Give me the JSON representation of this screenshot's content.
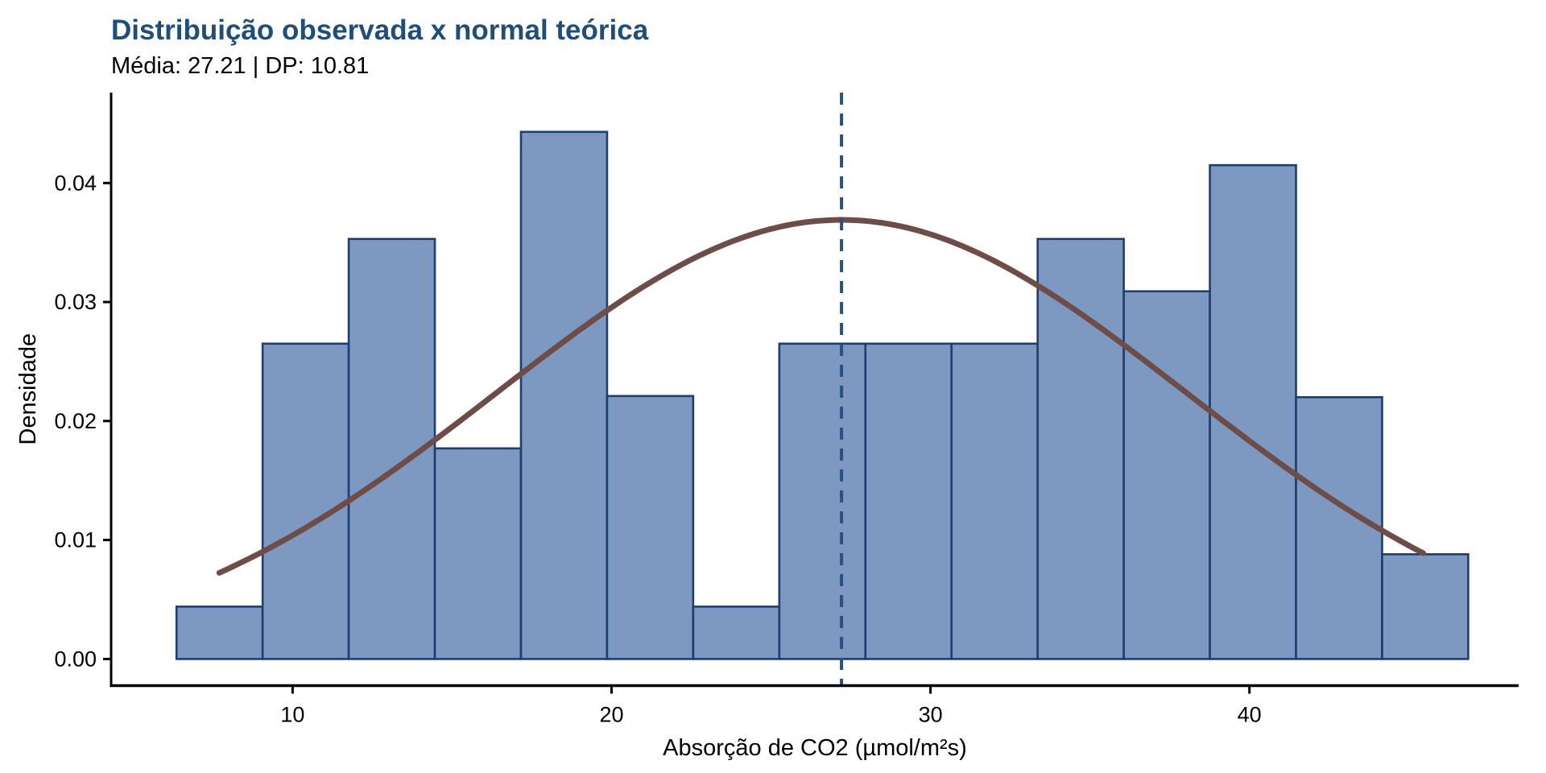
{
  "header": {
    "title": "Distribuição observada x normal teórica",
    "subtitle": "Média: 27.21 | DP: 10.81"
  },
  "stats": {
    "mean": 27.21,
    "sd": 10.81
  },
  "chart_data": {
    "type": "bar",
    "subtype": "histogram-with-normal-density-overlay",
    "title": "Distribuição observada x normal teórica",
    "subtitle": "Média: 27.21 | DP: 10.81",
    "xlabel": "Absorção de CO2 (µmol/m²s)",
    "ylabel": "Densidade",
    "x_ticks": [
      {
        "label": "10",
        "value": 10
      },
      {
        "label": "20",
        "value": 20
      },
      {
        "label": "30",
        "value": 30
      },
      {
        "label": "40",
        "value": 40
      }
    ],
    "y_ticks": [
      {
        "label": "0.00",
        "value": 0.0
      },
      {
        "label": "0.01",
        "value": 0.01
      },
      {
        "label": "0.02",
        "value": 0.02
      },
      {
        "label": "0.03",
        "value": 0.03
      },
      {
        "label": "0.04",
        "value": 0.04
      }
    ],
    "xlim": [
      4.31,
      48.44
    ],
    "ylim": [
      -0.00224,
      0.0476
    ],
    "grid": "off",
    "legend": "none",
    "bins": {
      "start": 6.36,
      "width": 2.7,
      "densities": [
        0.0044,
        0.0265,
        0.0353,
        0.0177,
        0.0443,
        0.0221,
        0.0044,
        0.0265,
        0.0265,
        0.0265,
        0.0353,
        0.0309,
        0.0415,
        0.022,
        0.0088
      ]
    },
    "normal_curve": {
      "mean": 27.21,
      "sd": 10.81,
      "x_min": 7.7,
      "x_max": 45.5
    },
    "mean_line": {
      "x": 27.21,
      "style": "dashed"
    },
    "colors": {
      "bar_fill": "#7D99C1",
      "bar_stroke": "#1E3E6E",
      "curve": "#6E4D49",
      "mean_line": "#285082",
      "title": "#1F4E79",
      "axis": "#000000",
      "text": "#000000"
    }
  }
}
